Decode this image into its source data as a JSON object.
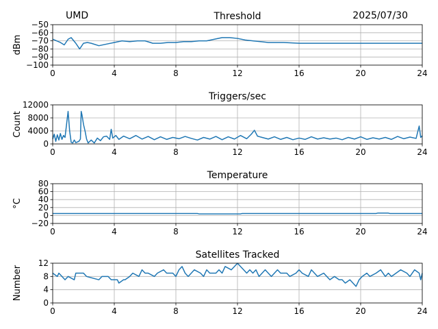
{
  "header": {
    "left": "UMD",
    "right": "2025/07/30"
  },
  "colors": {
    "series": "#1f77b4",
    "grid": "#b0b0b0",
    "axis": "#000000"
  },
  "chart_data": [
    {
      "type": "line",
      "title": "Threshold",
      "xlabel": "",
      "ylabel": "dBm",
      "xlim": [
        0,
        24
      ],
      "ylim": [
        -100,
        -50
      ],
      "xticks": [
        0,
        4,
        8,
        12,
        16,
        20,
        24
      ],
      "xtick_labels": [
        "0",
        "4",
        "8",
        "12",
        "16",
        "20",
        "24"
      ],
      "yticks": [
        -100,
        -90,
        -80,
        -70,
        -60,
        -50
      ],
      "ytick_labels": [
        "−100",
        "−90",
        "−80",
        "−70",
        "−60",
        "−50"
      ],
      "grid": true,
      "series": [
        {
          "x": [
            0,
            0.25,
            0.5,
            0.75,
            1.0,
            1.2,
            1.5,
            1.75,
            2.0,
            2.25,
            2.5,
            3.0,
            3.5,
            4.0,
            4.5,
            5.0,
            5.5,
            6.0,
            6.5,
            7.0,
            7.5,
            8.0,
            8.5,
            9.0,
            9.5,
            10.0,
            10.5,
            11.0,
            11.5,
            12.0,
            12.5,
            13.0,
            13.5,
            14.0,
            15.0,
            16.0,
            17.0,
            18.0,
            19.0,
            20.0,
            21.0,
            22.0,
            23.0,
            24.0
          ],
          "y": [
            -68,
            -70,
            -72,
            -75,
            -68,
            -66,
            -73,
            -80,
            -73,
            -72,
            -73,
            -76,
            -74,
            -72,
            -70,
            -71,
            -70,
            -70,
            -73,
            -73,
            -72,
            -72,
            -71,
            -71,
            -70,
            -70,
            -68,
            -66,
            -66,
            -67,
            -69,
            -70,
            -71,
            -72,
            -72,
            -73,
            -73,
            -73,
            -73,
            -73,
            -73,
            -73,
            -73,
            -73
          ]
        }
      ]
    },
    {
      "type": "line",
      "title": "Triggers/sec",
      "xlabel": "",
      "ylabel": "Count",
      "xlim": [
        0,
        24
      ],
      "ylim": [
        0,
        12000
      ],
      "xticks": [
        0,
        4,
        8,
        12,
        16,
        20,
        24
      ],
      "xtick_labels": [
        "0",
        "4",
        "8",
        "12",
        "16",
        "20",
        "24"
      ],
      "yticks": [
        0,
        4000,
        8000,
        12000
      ],
      "ytick_labels": [
        "0",
        "4000",
        "8000",
        "12000"
      ],
      "grid": true,
      "series": [
        {
          "x": [
            0,
            0.1,
            0.2,
            0.3,
            0.4,
            0.5,
            0.6,
            0.7,
            0.8,
            0.9,
            1.0,
            1.05,
            1.1,
            1.2,
            1.3,
            1.4,
            1.5,
            1.6,
            1.7,
            1.8,
            1.85,
            1.9,
            2.0,
            2.1,
            2.2,
            2.3,
            2.5,
            2.7,
            2.9,
            3.1,
            3.3,
            3.5,
            3.7,
            3.8,
            3.9,
            4.1,
            4.3,
            4.6,
            5.0,
            5.4,
            5.8,
            6.2,
            6.6,
            7.0,
            7.4,
            7.8,
            8.2,
            8.6,
            9.0,
            9.4,
            9.8,
            10.2,
            10.6,
            11.0,
            11.4,
            11.8,
            12.2,
            12.6,
            12.9,
            13.1,
            13.3,
            13.6,
            14.0,
            14.4,
            14.8,
            15.2,
            15.6,
            16.0,
            16.4,
            16.8,
            17.2,
            17.6,
            18.0,
            18.4,
            18.8,
            19.2,
            19.6,
            20.0,
            20.4,
            20.8,
            21.2,
            21.6,
            22.0,
            22.4,
            22.8,
            23.2,
            23.6,
            23.8,
            23.9,
            24.0
          ],
          "y": [
            1500,
            3000,
            800,
            2800,
            1200,
            3200,
            1400,
            2600,
            2000,
            6000,
            10000,
            7000,
            4000,
            500,
            300,
            1200,
            400,
            600,
            800,
            1500,
            10000,
            9000,
            6000,
            4000,
            1500,
            300,
            1200,
            300,
            1800,
            1000,
            2200,
            2400,
            1400,
            4500,
            1800,
            2600,
            1400,
            2400,
            1600,
            2600,
            1500,
            2300,
            1300,
            2200,
            1400,
            2000,
            1600,
            2300,
            1700,
            1200,
            2000,
            1500,
            2300,
            1300,
            2200,
            1500,
            2600,
            1600,
            3000,
            4200,
            2400,
            2000,
            1500,
            2200,
            1400,
            2000,
            1300,
            1800,
            1400,
            2200,
            1500,
            1900,
            1500,
            1800,
            1300,
            2000,
            1500,
            2200,
            1400,
            1900,
            1500,
            2000,
            1400,
            2300,
            1600,
            2100,
            1700,
            5500,
            2000,
            2500
          ]
        }
      ]
    },
    {
      "type": "line",
      "title": "Temperature",
      "xlabel": "",
      "ylabel": "°C",
      "xlim": [
        0,
        24
      ],
      "ylim": [
        -20,
        80
      ],
      "xticks": [
        0,
        4,
        8,
        12,
        16,
        20,
        24
      ],
      "xtick_labels": [
        "0",
        "4",
        "8",
        "12",
        "16",
        "20",
        "24"
      ],
      "yticks": [
        -20,
        0,
        20,
        40,
        60,
        80
      ],
      "ytick_labels": [
        "−20",
        "0",
        "20",
        "40",
        "60",
        "80"
      ],
      "grid": true,
      "series": [
        {
          "x": [
            0,
            9.4,
            9.5,
            12.2,
            12.3,
            21.0,
            21.1,
            21.8,
            21.9,
            24.0
          ],
          "y": [
            5,
            5,
            4,
            4,
            5,
            5,
            6,
            6,
            5,
            5
          ]
        }
      ]
    },
    {
      "type": "line",
      "title": "Satellites Tracked",
      "xlabel": "",
      "ylabel": "Number",
      "xlim": [
        0,
        24
      ],
      "ylim": [
        0,
        12
      ],
      "xticks": [
        0,
        4,
        8,
        12,
        16,
        20,
        24
      ],
      "xtick_labels": [
        "0",
        "4",
        "8",
        "12",
        "16",
        "20",
        "24"
      ],
      "yticks": [
        0,
        4,
        8,
        12
      ],
      "ytick_labels": [
        "0",
        "4",
        "8",
        "12"
      ],
      "grid": true,
      "series": [
        {
          "x": [
            0,
            0.3,
            0.4,
            0.8,
            1.0,
            1.4,
            1.5,
            2.0,
            2.2,
            3.0,
            3.2,
            3.6,
            3.8,
            4.2,
            4.3,
            4.6,
            4.7,
            5.0,
            5.2,
            5.6,
            5.8,
            6.0,
            6.2,
            6.6,
            6.8,
            7.2,
            7.4,
            7.8,
            8.0,
            8.2,
            8.4,
            8.6,
            8.8,
            9.0,
            9.2,
            9.6,
            9.8,
            10.0,
            10.2,
            10.6,
            10.8,
            11.0,
            11.2,
            11.6,
            11.8,
            12.0,
            12.2,
            12.4,
            12.6,
            12.8,
            13.0,
            13.2,
            13.4,
            13.6,
            13.8,
            14.0,
            14.2,
            14.6,
            14.8,
            15.2,
            15.4,
            15.8,
            16.0,
            16.2,
            16.6,
            16.8,
            17.0,
            17.2,
            17.6,
            17.8,
            18.0,
            18.3,
            18.6,
            18.8,
            19.0,
            19.3,
            19.5,
            19.7,
            19.9,
            20.1,
            20.4,
            20.6,
            21.0,
            21.3,
            21.6,
            21.8,
            22.0,
            22.3,
            22.6,
            23.0,
            23.2,
            23.5,
            23.8,
            23.9,
            24.0
          ],
          "y": [
            9,
            8,
            9,
            7,
            8,
            7,
            9,
            9,
            8,
            7,
            8,
            8,
            7,
            7,
            6,
            7,
            7,
            8,
            9,
            8,
            10,
            9,
            9,
            8,
            9,
            10,
            9,
            9,
            8,
            10,
            11,
            9,
            8,
            9,
            10,
            9,
            8,
            10,
            9,
            9,
            10,
            9,
            11,
            10,
            11,
            12,
            11,
            10,
            9,
            10,
            9,
            10,
            8,
            9,
            10,
            9,
            8,
            10,
            9,
            9,
            8,
            9,
            10,
            9,
            8,
            10,
            9,
            8,
            9,
            8,
            7,
            8,
            7,
            7,
            6,
            7,
            6,
            5,
            7,
            8,
            9,
            8,
            9,
            10,
            8,
            9,
            8,
            9,
            10,
            9,
            8,
            10,
            9,
            7,
            9
          ]
        }
      ]
    }
  ]
}
